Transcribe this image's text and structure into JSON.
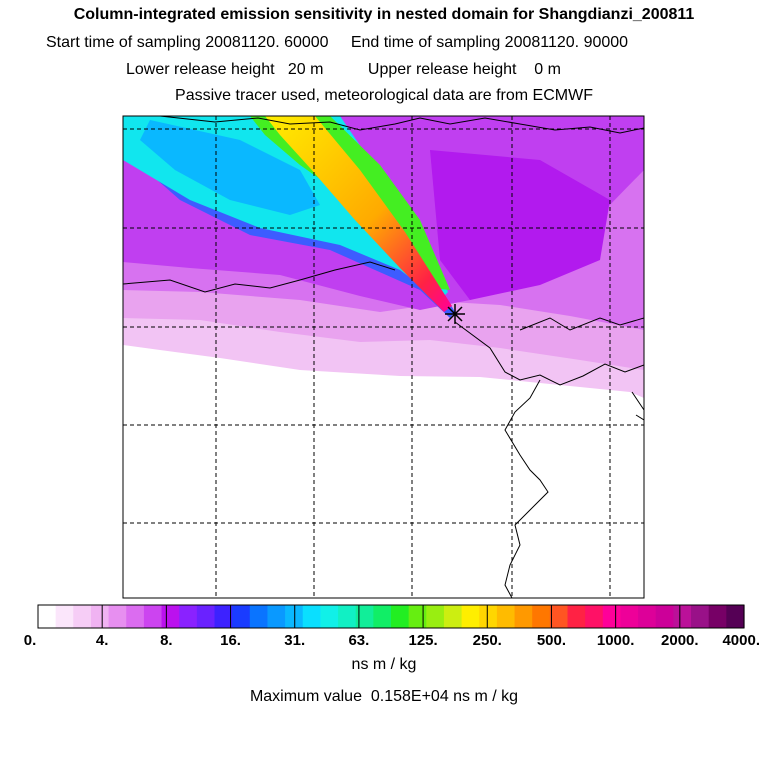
{
  "header": {
    "title": "Column-integrated emission sensitivity in nested domain for Shangdianzi_200811",
    "start_label": "Start time of sampling",
    "start_value": "20081120. 60000",
    "end_label": "End time of sampling",
    "end_value": "20081120. 90000",
    "lower_label": "Lower release height",
    "lower_value": "20 m",
    "upper_label": "Upper release height",
    "upper_value": "0 m",
    "tracer_note": "Passive tracer used, meteorological data are from ECMWF"
  },
  "chart_data": {
    "type": "heatmap",
    "title": "Column-integrated emission sensitivity in nested domain for Shangdianzi_200811",
    "colorbar": {
      "units": "ns m / kg",
      "scale": "logarithmic",
      "tick_labels": [
        "0.",
        "4.",
        "8.",
        "16.",
        "31.",
        "63.",
        "125.",
        "250.",
        "500.",
        "1000.",
        "2000.",
        "4000."
      ],
      "colors": [
        "#ffffff",
        "#fbe6fb",
        "#f6cdf6",
        "#f0b3f2",
        "#e78ff0",
        "#db6cf0",
        "#cc44f0",
        "#bb11ee",
        "#8a22ff",
        "#6a22ff",
        "#3d22ff",
        "#1a3cff",
        "#0a74ff",
        "#0a99ff",
        "#0ab8ff",
        "#0adfff",
        "#11f0e8",
        "#11f0c4",
        "#11ee99",
        "#11ee66",
        "#22ee22",
        "#66ee11",
        "#99ee11",
        "#ccee11",
        "#ffee00",
        "#ffd600",
        "#ffbb00",
        "#ff9900",
        "#ff7700",
        "#ff5522",
        "#ff2244",
        "#ff1166",
        "#ff0099",
        "#ee0099",
        "#dd0099",
        "#cc0099",
        "#bb1199",
        "#991188",
        "#770066",
        "#550055"
      ]
    },
    "receptor": "Shangdianzi",
    "maximum_value": 1580,
    "maximum_label": "Maximum value  0.158E+04 ns m / kg"
  }
}
